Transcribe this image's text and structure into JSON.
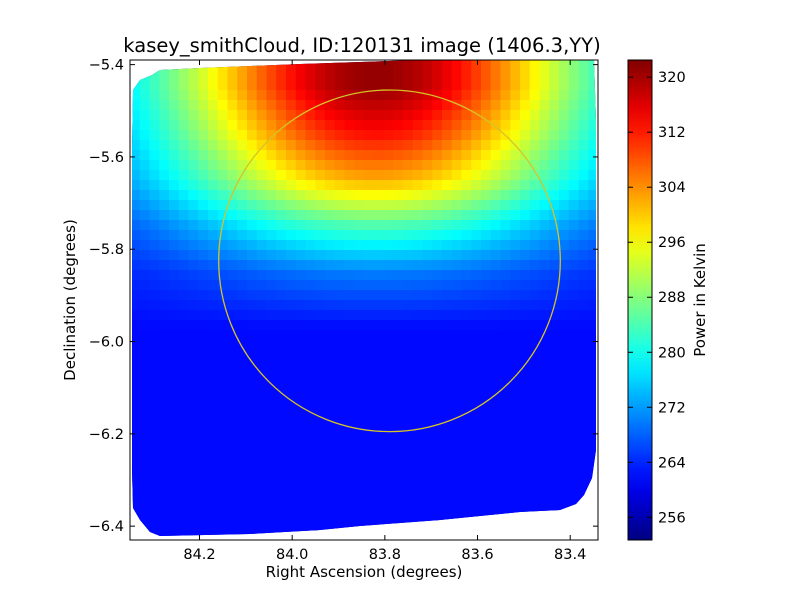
{
  "chart_data": {
    "type": "heatmap",
    "title": "kasey_smithCloud, ID:120131 image (1406.3,YY)",
    "xlabel": "Right Ascension (degrees)",
    "ylabel": "Declination (degrees)",
    "xlim": [
      84.35,
      83.34
    ],
    "ylim": [
      -6.43,
      -5.39
    ],
    "x_axis_reversed": true,
    "xticks": [
      {
        "value": 84.2,
        "label": "84.2"
      },
      {
        "value": 84.0,
        "label": "84.0"
      },
      {
        "value": 83.8,
        "label": "83.8"
      },
      {
        "value": 83.6,
        "label": "83.6"
      },
      {
        "value": 83.4,
        "label": "83.4"
      }
    ],
    "yticks": [
      {
        "value": -5.4,
        "label": "−5.4"
      },
      {
        "value": -5.6,
        "label": "−5.6"
      },
      {
        "value": -5.8,
        "label": "−5.8"
      },
      {
        "value": -6.0,
        "label": "−6.0"
      },
      {
        "value": -6.2,
        "label": "−6.2"
      },
      {
        "value": -6.4,
        "label": "−6.4"
      }
    ],
    "colorbar": {
      "label": "Power in Kelvin",
      "colormap": "jet",
      "range": [
        252.7,
        322.5
      ],
      "ticks": [
        256,
        264,
        272,
        280,
        288,
        296,
        304,
        312,
        320
      ]
    },
    "field": {
      "peak": {
        "ra": 83.82,
        "dec": -5.43,
        "value": 322
      },
      "min_value": 253,
      "description_profile": [
        {
          "dec": -5.45,
          "value_at_center": 321
        },
        {
          "dec": -5.55,
          "value_at_center": 313
        },
        {
          "dec": -5.65,
          "value_at_center": 302
        },
        {
          "dec": -5.75,
          "value_at_center": 284
        },
        {
          "dec": -5.85,
          "value_at_center": 270
        },
        {
          "dec": -6.0,
          "value_at_center": 260
        },
        {
          "dec": -6.2,
          "value_at_center": 255
        },
        {
          "dec": -6.4,
          "value_at_center": 253
        }
      ]
    },
    "overlay_circle": {
      "center_ra": 83.79,
      "center_dec": -5.825,
      "radius_deg": 0.37,
      "color": "#d4c428"
    },
    "grid": false
  }
}
